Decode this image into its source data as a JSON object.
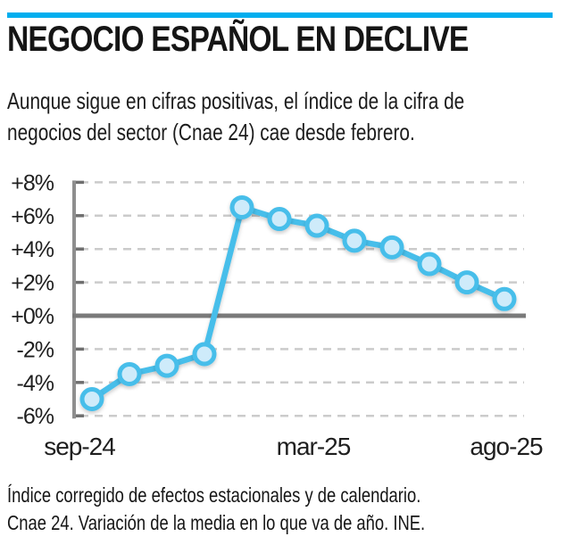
{
  "accent_color": "#00AEEF",
  "header": {
    "title": "NEGOCIO ESPAÑOL EN DECLIVE",
    "subtitle_line1": "Aunque sigue en cifras positivas, el índice de la cifra de",
    "subtitle_line2": "negocios del sector (Cnae 24) cae desde febrero."
  },
  "chart_data": {
    "type": "line",
    "categories": [
      "sep-24",
      "oct-24",
      "nov-24",
      "dic-24",
      "ene-25",
      "feb-25",
      "mar-25",
      "abr-25",
      "may-25",
      "jun-25",
      "jul-25",
      "ago-25"
    ],
    "values": [
      -5.0,
      -3.5,
      -3.0,
      -2.3,
      6.5,
      5.8,
      5.4,
      4.5,
      4.1,
      3.1,
      2.0,
      1.0
    ],
    "unit": "%",
    "ylim": [
      -6,
      8
    ],
    "yticks": [
      {
        "value": 8,
        "label": "+8%"
      },
      {
        "value": 6,
        "label": "+6%"
      },
      {
        "value": 4,
        "label": "+4%"
      },
      {
        "value": 2,
        "label": "+2%"
      },
      {
        "value": 0,
        "label": "+0%"
      },
      {
        "value": -2,
        "label": "-2%"
      },
      {
        "value": -4,
        "label": "-4%"
      },
      {
        "value": -6,
        "label": "-6%"
      }
    ],
    "xticks": [
      {
        "index": 0,
        "label": "sep-24"
      },
      {
        "index": 6,
        "label": "mar-25"
      },
      {
        "index": 11,
        "label": "ago-25"
      }
    ],
    "grid": "horizontal-dashed",
    "zero_line": true,
    "legend": "none",
    "colors": {
      "line": "#47BEEA",
      "marker_fill": "#CEEBFA",
      "grid": "#CBCBCB",
      "axis": "#8E8E8E",
      "tick": "#6F6F6F",
      "zero_line": "#7A7A7A"
    }
  },
  "footer": {
    "line1": "Índice corregido de efectos estacionales y de calendario.",
    "line2": "Cnae 24. Variación de la media en lo que va de año. INE."
  }
}
